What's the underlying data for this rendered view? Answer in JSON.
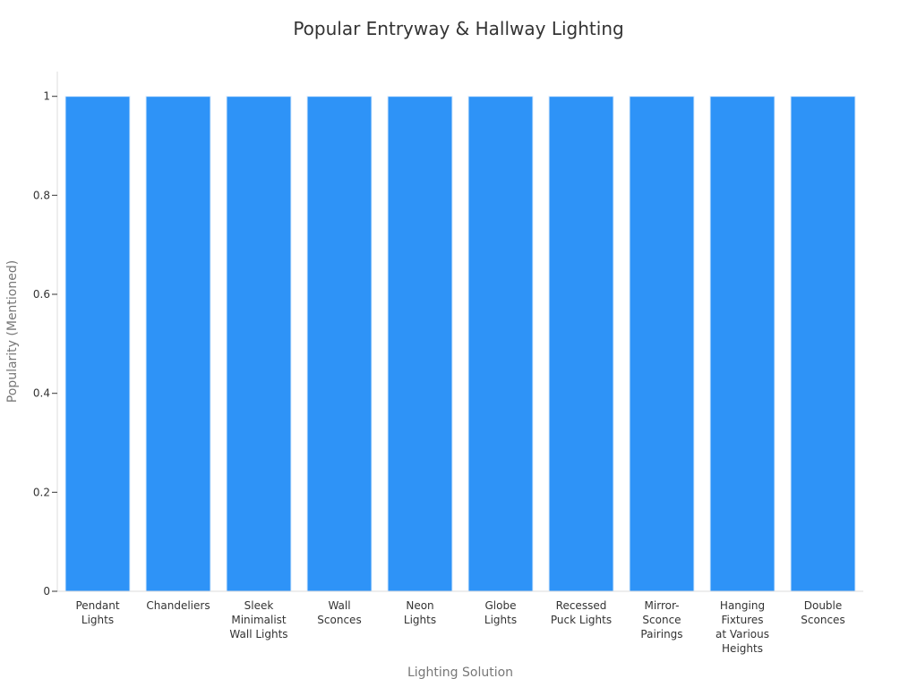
{
  "chart_data": {
    "type": "bar",
    "title": "Popular Entryway & Hallway Lighting",
    "xlabel": "Lighting Solution",
    "ylabel": "Popularity (Mentioned)",
    "categories": [
      "Pendant Lights",
      "Chandeliers",
      "Sleek Minimalist Wall Lights",
      "Wall Sconces",
      "Neon Lights",
      "Globe Lights",
      "Recessed Puck Lights",
      "Mirror-Sconce Pairings",
      "Hanging Fixtures at Various Heights",
      "Double Sconces"
    ],
    "category_label_lines": [
      [
        "Pendant",
        "Lights"
      ],
      [
        "Chandeliers"
      ],
      [
        "Sleek",
        "Minimalist",
        "Wall Lights"
      ],
      [
        "Wall",
        "Sconces"
      ],
      [
        "Neon",
        "Lights"
      ],
      [
        "Globe",
        "Lights"
      ],
      [
        "Recessed",
        "Puck Lights"
      ],
      [
        "Mirror-",
        "Sconce",
        "Pairings"
      ],
      [
        "Hanging",
        "Fixtures",
        "at Various",
        "Heights"
      ],
      [
        "Double",
        "Sconces"
      ]
    ],
    "values": [
      1,
      1,
      1,
      1,
      1,
      1,
      1,
      1,
      1,
      1
    ],
    "ylim": [
      0,
      1.05
    ],
    "yticks": [
      0,
      0.2,
      0.4,
      0.6,
      0.8,
      1
    ],
    "ytick_labels": [
      "0",
      "0.2",
      "0.4",
      "0.6",
      "0.8",
      "1"
    ],
    "grid": false,
    "legend": "none",
    "colors": {
      "bar_fill": "#2e93f7",
      "bar_edge": "#dcecfd",
      "axis_line": "#dddddd",
      "tick_text": "#333333",
      "axis_title": "#777777",
      "title_text": "#333333"
    }
  }
}
